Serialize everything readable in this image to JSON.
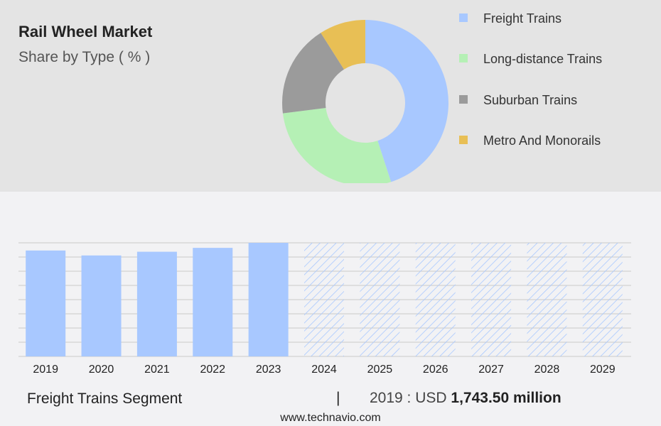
{
  "header": {
    "title": "Rail Wheel Market",
    "subtitle": "Share by Type ( % )"
  },
  "chart_data": [
    {
      "type": "pie",
      "style": "donut",
      "title": "Share by Type ( % )",
      "categories": [
        "Freight Trains",
        "Long-distance Trains",
        "Suburban Trains",
        "Metro And Monorails"
      ],
      "values": [
        45,
        28,
        18,
        9
      ],
      "colors": [
        "#a8c8ff",
        "#b5f0b5",
        "#9b9b9b",
        "#e8bf55"
      ],
      "legend_position": "right"
    },
    {
      "type": "bar",
      "categories": [
        "2019",
        "2020",
        "2021",
        "2022",
        "2023",
        "2024",
        "2025",
        "2026",
        "2027",
        "2028",
        "2029"
      ],
      "values": [
        1743.5,
        1662,
        1723,
        1787,
        1870,
        1870,
        1870,
        1870,
        1870,
        1870,
        1870
      ],
      "forecast_from": "2024",
      "actual_color": "#a8c8ff",
      "forecast_style": "hatched",
      "ylim": [
        0,
        1870
      ],
      "grid": true
    }
  ],
  "footer": {
    "segment_label": "Freight Trains Segment",
    "separator": "|",
    "value_prefix": "2019 : USD",
    "value_bold": "1,743.50 million"
  },
  "website": "www.technavio.com"
}
